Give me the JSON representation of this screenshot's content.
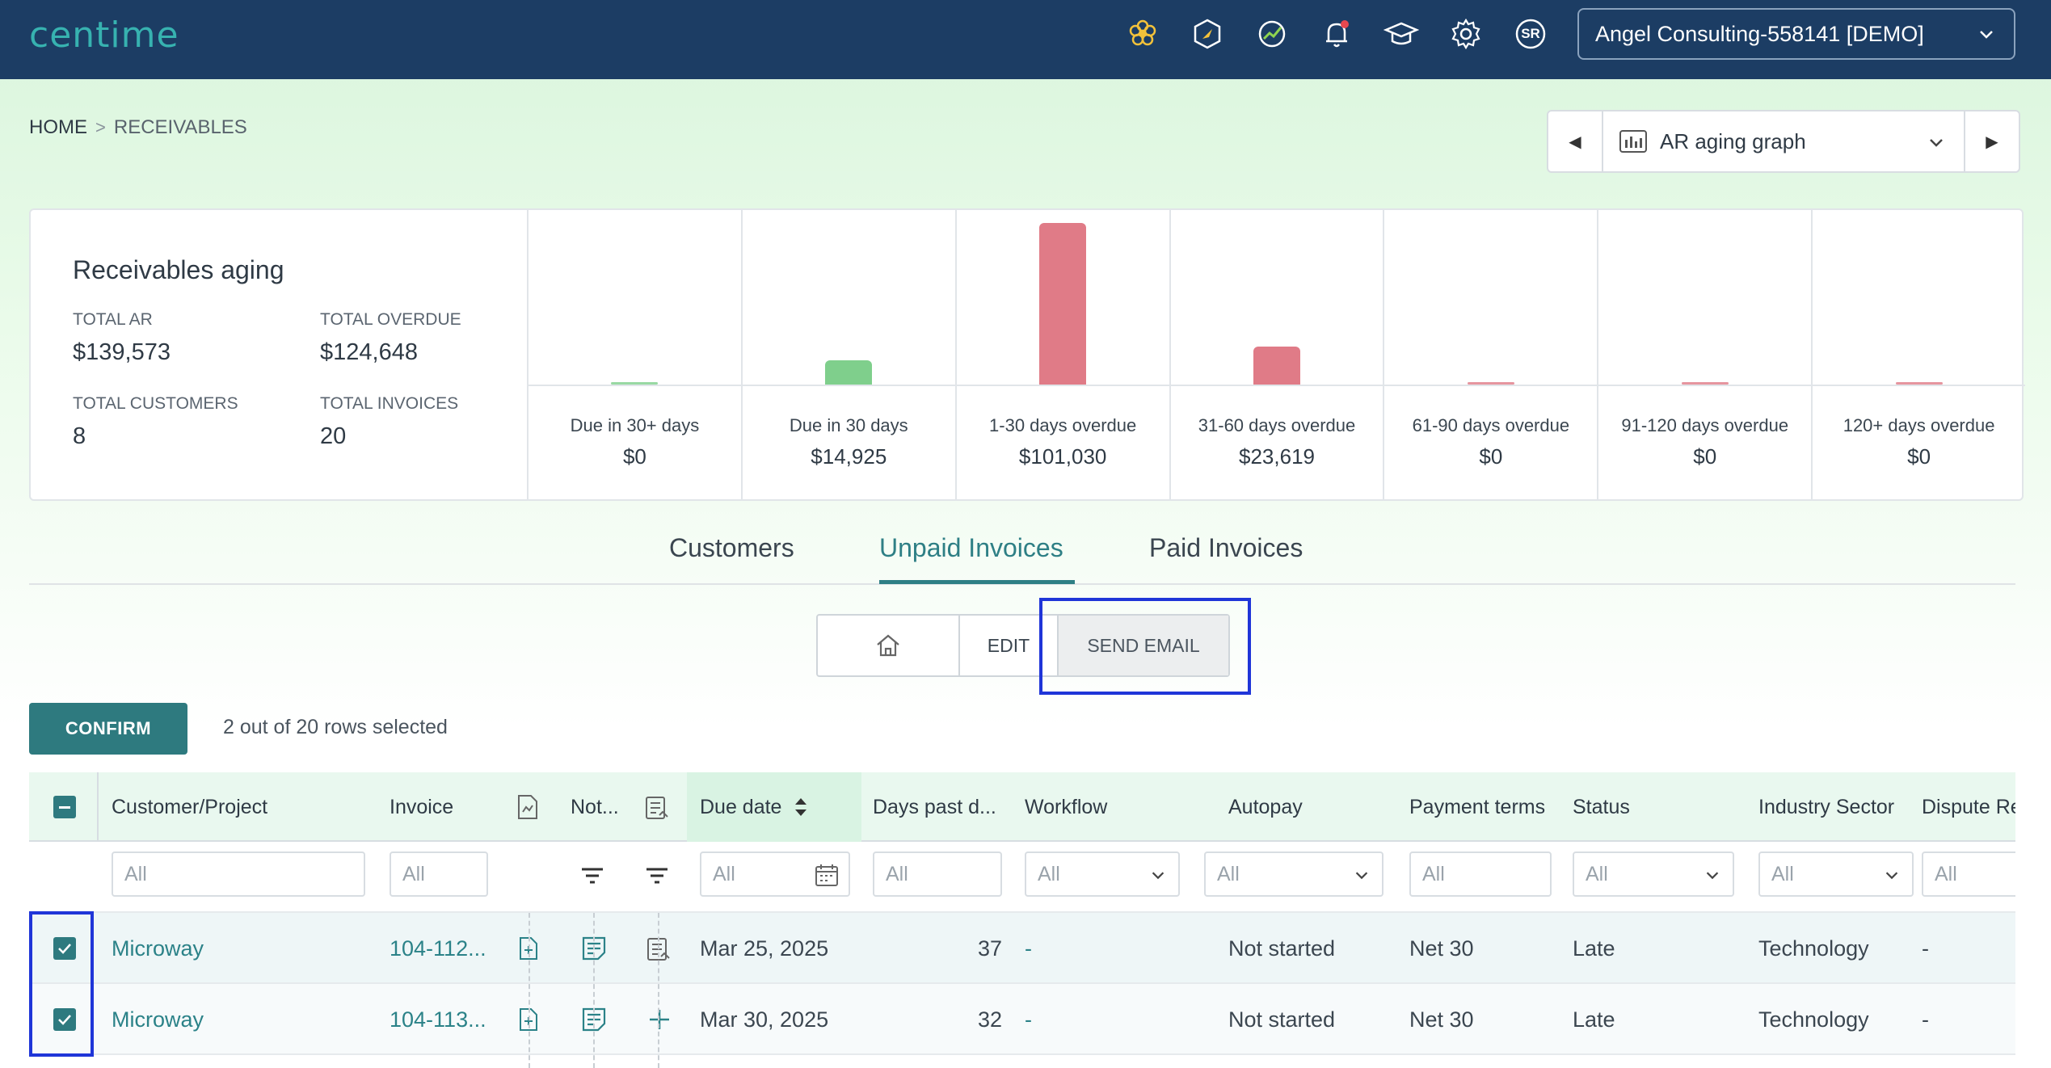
{
  "app": {
    "logo": "centime",
    "account": "Angel Consulting-558141 [DEMO]",
    "user_initials": "SR",
    "top_icons": [
      "flower-icon",
      "cube-icon",
      "growth-icon",
      "bell-icon",
      "graduation-cap-icon",
      "gear-icon",
      "user-avatar"
    ],
    "colors": {
      "header_bg": "#1c3d64",
      "accent": "#2e7a7f",
      "bar_green": "#7fcf8c",
      "bar_red": "#e07b87",
      "highlight": "#1f35d8"
    }
  },
  "breadcrumb": {
    "home": "HOME",
    "separator": ">",
    "current": "RECEIVABLES"
  },
  "graph_selector": {
    "label": "AR aging graph"
  },
  "aging": {
    "title": "Receivables aging",
    "stats": [
      {
        "label": "TOTAL AR",
        "value": "$139,573"
      },
      {
        "label": "TOTAL OVERDUE",
        "value": "$124,648"
      },
      {
        "label": "TOTAL CUSTOMERS",
        "value": "8"
      },
      {
        "label": "TOTAL INVOICES",
        "value": "20"
      }
    ],
    "buckets": [
      {
        "label": "Due in 30+ days",
        "value": "$0"
      },
      {
        "label": "Due in 30 days",
        "value": "$14,925"
      },
      {
        "label": "1-30 days overdue",
        "value": "$101,030"
      },
      {
        "label": "31-60 days overdue",
        "value": "$23,619"
      },
      {
        "label": "61-90 days overdue",
        "value": "$0"
      },
      {
        "label": "91-120 days overdue",
        "value": "$0"
      },
      {
        "label": "120+ days overdue",
        "value": "$0"
      }
    ]
  },
  "chart_data": {
    "type": "bar",
    "categories": [
      "Due in 30+ days",
      "Due in 30 days",
      "1-30 days overdue",
      "31-60 days overdue",
      "61-90 days overdue",
      "91-120 days overdue",
      "120+ days overdue"
    ],
    "values": [
      0,
      14925,
      101030,
      23619,
      0,
      0,
      0
    ],
    "colors": [
      "#7fcf8c",
      "#7fcf8c",
      "#e07b87",
      "#e07b87",
      "#e07b87",
      "#e07b87",
      "#e07b87"
    ]
  },
  "tabs": [
    {
      "label": "Customers",
      "active": false
    },
    {
      "label": "Unpaid Invoices",
      "active": true
    },
    {
      "label": "Paid Invoices",
      "active": false
    }
  ],
  "view_buttons": {
    "edit": "EDIT",
    "send_email": "SEND EMAIL"
  },
  "selection": {
    "confirm": "CONFIRM",
    "status": "2 out of 20 rows selected"
  },
  "grid": {
    "headers": {
      "customer": "Customer/Project",
      "invoice": "Invoice",
      "notes": "Not...",
      "due_date": "Due date",
      "days_past": "Days past d...",
      "workflow": "Workflow",
      "autopay": "Autopay",
      "payment_terms": "Payment terms",
      "status": "Status",
      "industry": "Industry Sector",
      "dispute": "Dispute Re"
    },
    "filter_placeholder": "All",
    "rows": [
      {
        "customer": "Microway",
        "invoice": "104-112...",
        "due_date": "Mar 25, 2025",
        "days_past": "37",
        "workflow": "-",
        "autopay": "Not started",
        "payment_terms": "Net 30",
        "status": "Late",
        "industry": "Technology",
        "dispute": "-"
      },
      {
        "customer": "Microway",
        "invoice": "104-113...",
        "due_date": "Mar 30, 2025",
        "days_past": "32",
        "workflow": "-",
        "autopay": "Not started",
        "payment_terms": "Net 30",
        "status": "Late",
        "industry": "Technology",
        "dispute": "-"
      }
    ]
  }
}
